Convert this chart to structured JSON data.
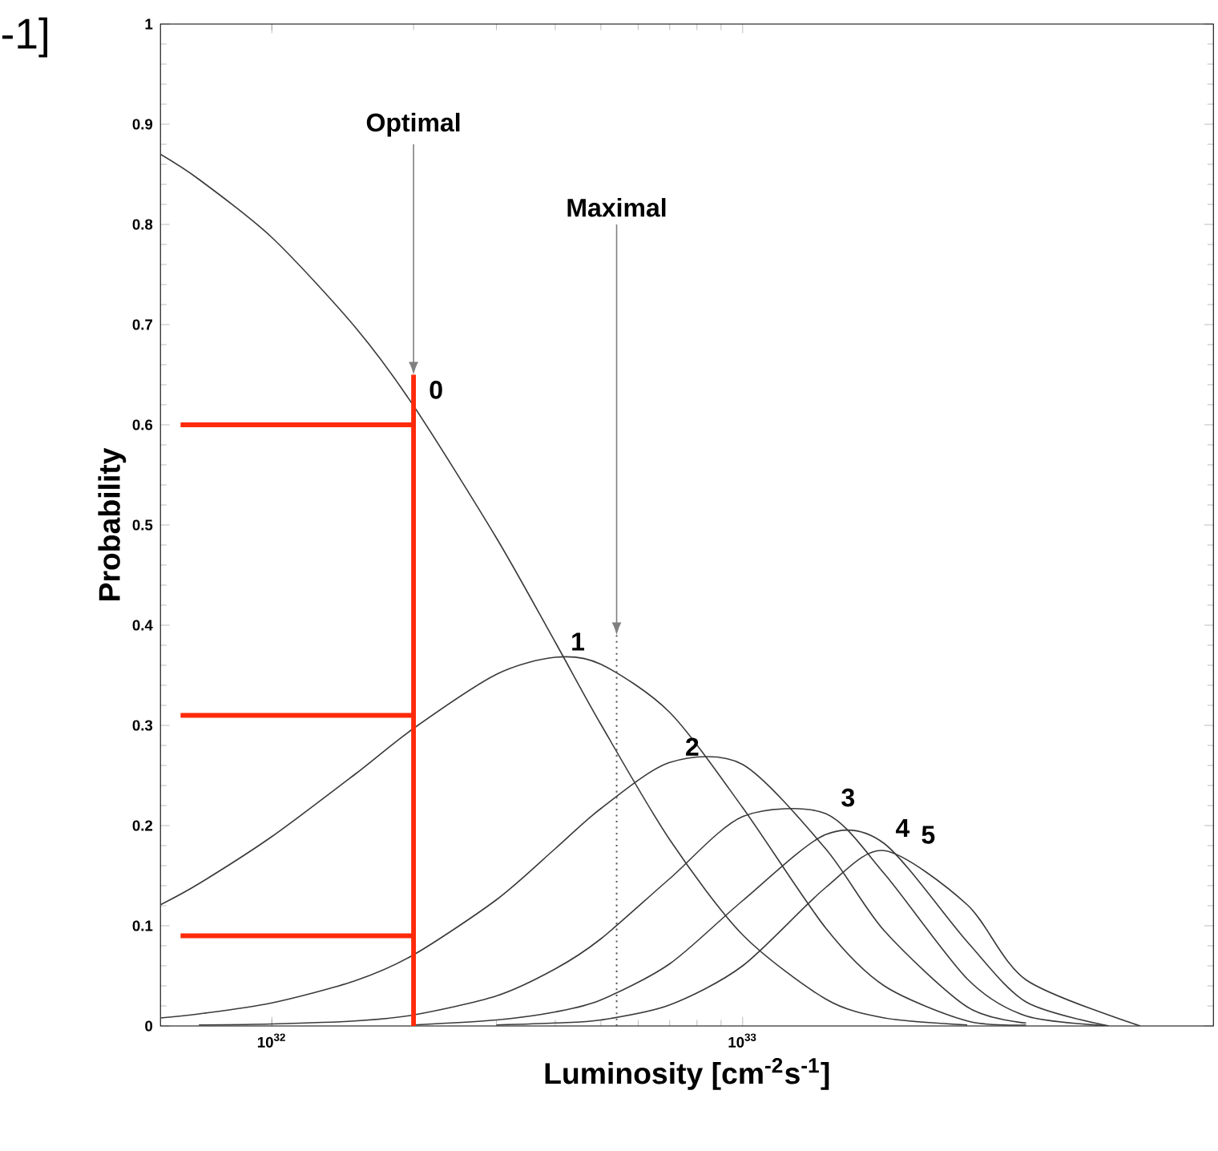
{
  "chart_data": {
    "type": "line",
    "xlabel": "Luminosity [cm$^{-2}$s$^{-1}$]",
    "ylabel": "Probability",
    "log": "x",
    "marker": "none",
    "xlim": [
      5.8e+31,
      1e+34
    ],
    "ylim": [
      0,
      1
    ],
    "xticks": [
      {
        "value": 1e+32,
        "label": "10$^{32}$"
      },
      {
        "value": 1e+33,
        "label": "10$^{33}$"
      }
    ],
    "yticks": [
      0,
      0.1,
      0.2,
      0.3,
      0.4,
      0.5,
      0.6,
      0.7,
      0.8,
      0.9,
      1
    ],
    "series": [
      {
        "name": "0",
        "color": "#3a3a3a",
        "x": [
          5.8e+31,
          7e+31,
          1e+32,
          1.5e+32,
          2e+32,
          3e+32,
          4e+32,
          5e+32,
          7e+32,
          1e+33,
          1.5e+33,
          2e+33,
          3e+33
        ],
        "values": [
          0.87,
          0.845,
          0.787,
          0.698,
          0.619,
          0.487,
          0.383,
          0.301,
          0.186,
          0.091,
          0.027,
          0.008,
          0.001
        ]
      },
      {
        "name": "1",
        "color": "#3a3a3a",
        "x": [
          5.8e+31,
          7e+31,
          1e+32,
          1.5e+32,
          2e+32,
          3e+32,
          4e+32,
          5e+32,
          7e+32,
          1e+33,
          1.5e+33,
          2e+33,
          3e+33,
          4e+33
        ],
        "values": [
          0.121,
          0.142,
          0.189,
          0.251,
          0.297,
          0.351,
          0.368,
          0.361,
          0.313,
          0.218,
          0.098,
          0.04,
          0.005,
          0.001
        ]
      },
      {
        "name": "2",
        "color": "#3a3a3a",
        "x": [
          5.8e+31,
          7e+31,
          1e+32,
          1.5e+32,
          2e+32,
          3e+32,
          4e+32,
          5e+32,
          7e+32,
          1e+33,
          1.5e+33,
          2e+33,
          3e+33,
          4e+33
        ],
        "values": [
          0.008,
          0.012,
          0.023,
          0.045,
          0.071,
          0.126,
          0.177,
          0.217,
          0.263,
          0.261,
          0.177,
          0.095,
          0.019,
          0.003
        ]
      },
      {
        "name": "3",
        "color": "#3a3a3a",
        "x": [
          7e+31,
          1e+32,
          1.5e+32,
          2e+32,
          3e+32,
          4e+32,
          5e+32,
          7e+32,
          1e+33,
          1.5e+33,
          2e+33,
          3e+33,
          4e+33,
          6e+33
        ],
        "values": [
          0.001,
          0.002,
          0.005,
          0.011,
          0.03,
          0.057,
          0.087,
          0.147,
          0.209,
          0.212,
          0.152,
          0.047,
          0.01,
          0
        ]
      },
      {
        "name": "4",
        "color": "#3a3a3a",
        "x": [
          2e+32,
          3e+32,
          4e+32,
          5e+32,
          7e+32,
          1e+33,
          1.5e+33,
          2e+33,
          3e+33,
          4e+33,
          6e+33
        ],
        "values": [
          0.001,
          0.006,
          0.014,
          0.026,
          0.062,
          0.125,
          0.191,
          0.182,
          0.084,
          0.024,
          0
        ]
      },
      {
        "name": "5",
        "color": "#3a3a3a",
        "x": [
          3e+32,
          4e+32,
          5e+32,
          7e+32,
          1e+33,
          1.5e+33,
          2e+33,
          3e+33,
          4e+33,
          7e+33
        ],
        "values": [
          0.001,
          0.003,
          0.006,
          0.021,
          0.06,
          0.138,
          0.175,
          0.121,
          0.046,
          0
        ]
      },
      {
        "color": "#ff2a0a",
        "x": [
          2e+32,
          2e+32
        ],
        "values": [
          0,
          0.65
        ]
      },
      {
        "color": "#ff2a0a",
        "x": [
          6.4e+31,
          2e+32
        ],
        "values": [
          0.6,
          0.6
        ]
      },
      {
        "color": "#ff2a0a",
        "x": [
          6.4e+31,
          2e+32
        ],
        "values": [
          0.31,
          0.31
        ]
      },
      {
        "color": "#ff2a0a",
        "x": [
          6.4e+31,
          2e+32
        ],
        "values": [
          0.09,
          0.09
        ]
      },
      {
        "color": "#555555",
        "line_style": "dotted",
        "x": [
          5.4e+32,
          5.4e+32
        ],
        "values": [
          0,
          0.39
        ]
      }
    ],
    "annotations": [
      {
        "text": "Optimal",
        "x": 2e+32,
        "y": 0.65
      },
      {
        "text": "Maximal",
        "x": 5.4e+32,
        "y": 0.39
      },
      "-1]"
    ]
  }
}
